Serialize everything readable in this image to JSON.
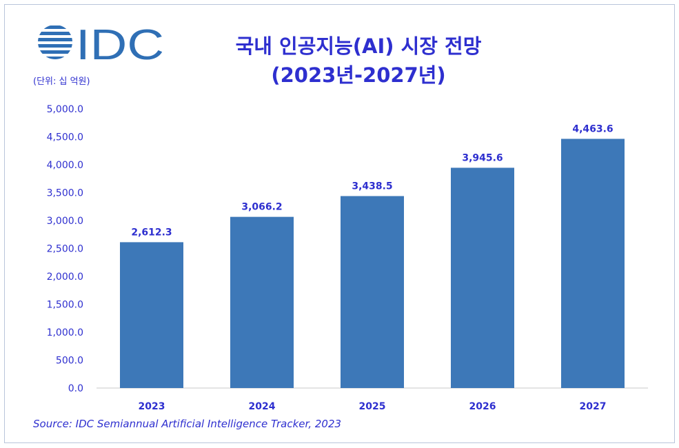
{
  "header": {
    "logo_text": "IDC",
    "unit_label": "(단위: 십 억원)",
    "title_line1": "국내 인공지능(AI) 시장 전망",
    "title_line2": "(2023년-2027년)"
  },
  "source": "Source: IDC Semiannual Artificial Intelligence Tracker, 2023",
  "colors": {
    "bar": "#3d78b8",
    "text_blue": "#2e2fcf",
    "axis": "#c8c8c8"
  },
  "chart_data": {
    "type": "bar",
    "title": "국내 인공지능(AI) 시장 전망 (2023년-2027년)",
    "subtitle": "(단위: 십 억원)",
    "categories": [
      "2023",
      "2024",
      "2025",
      "2026",
      "2027"
    ],
    "values": [
      2612.3,
      3066.2,
      3438.5,
      3945.6,
      4463.6
    ],
    "value_labels": [
      "2,612.3",
      "3,066.2",
      "3,438.5",
      "3,945.6",
      "4,463.6"
    ],
    "y_ticks": [
      "0.0",
      "500.0",
      "1,000.0",
      "1,500.0",
      "2,000.0",
      "2,500.0",
      "3,000.0",
      "3,500.0",
      "4,000.0",
      "4,500.0",
      "5,000.0"
    ],
    "ylim": [
      0,
      5000
    ],
    "grid": false,
    "legend": "none"
  }
}
